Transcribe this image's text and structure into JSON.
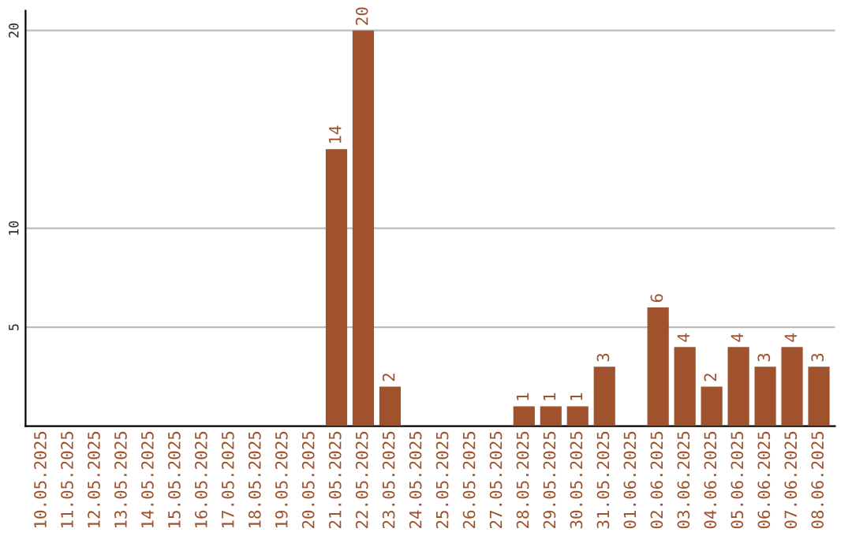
{
  "chart_data": {
    "type": "bar",
    "categories": [
      "10.05.2025",
      "11.05.2025",
      "12.05.2025",
      "13.05.2025",
      "14.05.2025",
      "15.05.2025",
      "16.05.2025",
      "17.05.2025",
      "18.05.2025",
      "19.05.2025",
      "20.05.2025",
      "21.05.2025",
      "22.05.2025",
      "23.05.2025",
      "24.05.2025",
      "25.05.2025",
      "26.05.2025",
      "27.05.2025",
      "28.05.2025",
      "29.05.2025",
      "30.05.2025",
      "31.05.2025",
      "01.06.2025",
      "02.06.2025",
      "03.06.2025",
      "04.06.2025",
      "05.06.2025",
      "06.06.2025",
      "07.06.2025",
      "08.06.2025"
    ],
    "values": [
      0,
      0,
      0,
      0,
      0,
      0,
      0,
      0,
      0,
      0,
      0,
      14,
      20,
      2,
      0,
      0,
      0,
      0,
      1,
      1,
      1,
      3,
      0,
      6,
      4,
      2,
      4,
      3,
      4,
      3
    ],
    "value_labels": [
      null,
      null,
      null,
      null,
      null,
      null,
      null,
      null,
      null,
      null,
      null,
      "14",
      "20",
      "2",
      null,
      null,
      null,
      null,
      "1",
      "1",
      "1",
      "3",
      null,
      "6",
      "4",
      "2",
      "4",
      "3",
      "4",
      "3"
    ],
    "color": "#a0522d",
    "ylim": [
      0,
      21
    ],
    "yticks": [
      5,
      10,
      20
    ],
    "grid": "y"
  }
}
